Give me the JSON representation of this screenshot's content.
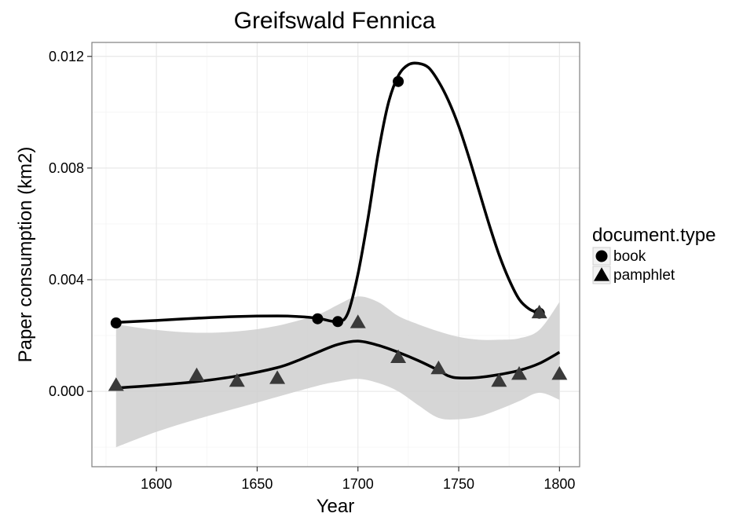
{
  "chart_data": {
    "type": "scatter",
    "title": "Greifswald Fennica",
    "xlabel": "Year",
    "ylabel": "Paper consumption (km2)",
    "xlim": [
      1568,
      1810
    ],
    "ylim": [
      -0.0027,
      0.0125
    ],
    "x_ticks": [
      1600,
      1650,
      1700,
      1750,
      1800
    ],
    "x_tick_labels": [
      "1600",
      "1650",
      "1700",
      "1750",
      "1800"
    ],
    "y_ticks": [
      0.0,
      0.004,
      0.008,
      0.012
    ],
    "y_tick_labels": [
      "0.000",
      "0.004",
      "0.008",
      "0.012"
    ],
    "grid": true,
    "legend": {
      "title": "document.type",
      "placement": "right",
      "entries": [
        {
          "label": "book",
          "shape": "circle"
        },
        {
          "label": "pamphlet",
          "shape": "triangle"
        }
      ]
    },
    "series": [
      {
        "name": "book",
        "shape": "circle",
        "color": "#000000",
        "points": [
          {
            "x": 1580,
            "y": 0.00245
          },
          {
            "x": 1680,
            "y": 0.0026
          },
          {
            "x": 1690,
            "y": 0.0025
          },
          {
            "x": 1720,
            "y": 0.0111
          },
          {
            "x": 1790,
            "y": 0.0028
          }
        ],
        "smooth": [
          [
            1580,
            0.00247
          ],
          [
            1600,
            0.00254
          ],
          [
            1620,
            0.00262
          ],
          [
            1640,
            0.00268
          ],
          [
            1660,
            0.0027
          ],
          [
            1670,
            0.00268
          ],
          [
            1680,
            0.00262
          ],
          [
            1690,
            0.0025
          ],
          [
            1695,
            0.0028
          ],
          [
            1700,
            0.0042
          ],
          [
            1705,
            0.0062
          ],
          [
            1710,
            0.0085
          ],
          [
            1715,
            0.0103
          ],
          [
            1720,
            0.0113
          ],
          [
            1725,
            0.0117
          ],
          [
            1730,
            0.01175
          ],
          [
            1735,
            0.0116
          ],
          [
            1740,
            0.0111
          ],
          [
            1745,
            0.0104
          ],
          [
            1750,
            0.0095
          ],
          [
            1755,
            0.0084
          ],
          [
            1760,
            0.0072
          ],
          [
            1765,
            0.006
          ],
          [
            1770,
            0.0049
          ],
          [
            1775,
            0.004
          ],
          [
            1780,
            0.0033
          ],
          [
            1785,
            0.00295
          ],
          [
            1790,
            0.0028
          ]
        ]
      },
      {
        "name": "pamphlet",
        "shape": "triangle",
        "color": "#3a3a3a",
        "points": [
          {
            "x": 1580,
            "y": 0.0002
          },
          {
            "x": 1620,
            "y": 0.00055
          },
          {
            "x": 1640,
            "y": 0.00035
          },
          {
            "x": 1660,
            "y": 0.00045
          },
          {
            "x": 1700,
            "y": 0.00245
          },
          {
            "x": 1720,
            "y": 0.0012
          },
          {
            "x": 1740,
            "y": 0.0008
          },
          {
            "x": 1770,
            "y": 0.00035
          },
          {
            "x": 1780,
            "y": 0.0006
          },
          {
            "x": 1790,
            "y": 0.0028
          },
          {
            "x": 1800,
            "y": 0.0006
          }
        ],
        "smooth": [
          [
            1580,
            0.00012
          ],
          [
            1600,
            0.00022
          ],
          [
            1620,
            0.00035
          ],
          [
            1640,
            0.00055
          ],
          [
            1660,
            0.00085
          ],
          [
            1670,
            0.0011
          ],
          [
            1680,
            0.0014
          ],
          [
            1690,
            0.00168
          ],
          [
            1700,
            0.0018
          ],
          [
            1710,
            0.00165
          ],
          [
            1720,
            0.0014
          ],
          [
            1730,
            0.0011
          ],
          [
            1740,
            0.00075
          ],
          [
            1745,
            0.00055
          ],
          [
            1750,
            0.00048
          ],
          [
            1760,
            0.0005
          ],
          [
            1770,
            0.0006
          ],
          [
            1780,
            0.00075
          ],
          [
            1790,
            0.001
          ],
          [
            1800,
            0.0014
          ]
        ],
        "ci_upper": [
          [
            1580,
            0.0024
          ],
          [
            1600,
            0.0022
          ],
          [
            1620,
            0.0021
          ],
          [
            1640,
            0.00215
          ],
          [
            1660,
            0.00235
          ],
          [
            1680,
            0.00275
          ],
          [
            1690,
            0.0031
          ],
          [
            1700,
            0.0034
          ],
          [
            1710,
            0.0032
          ],
          [
            1720,
            0.0027
          ],
          [
            1730,
            0.0024
          ],
          [
            1740,
            0.00215
          ],
          [
            1750,
            0.00195
          ],
          [
            1760,
            0.00185
          ],
          [
            1770,
            0.00185
          ],
          [
            1780,
            0.0019
          ],
          [
            1790,
            0.0022
          ],
          [
            1800,
            0.0032
          ]
        ],
        "ci_lower": [
          [
            1580,
            -0.002
          ],
          [
            1600,
            -0.00145
          ],
          [
            1620,
            -0.001
          ],
          [
            1640,
            -0.0006
          ],
          [
            1660,
            -0.0002
          ],
          [
            1680,
            0.0002
          ],
          [
            1690,
            0.00035
          ],
          [
            1700,
            0.00045
          ],
          [
            1710,
            0.0003
          ],
          [
            1720,
            0.0
          ],
          [
            1730,
            -0.0005
          ],
          [
            1740,
            -0.00095
          ],
          [
            1750,
            -0.001
          ],
          [
            1760,
            -0.0009
          ],
          [
            1770,
            -0.00065
          ],
          [
            1780,
            -0.00035
          ],
          [
            1790,
            -5e-05
          ],
          [
            1800,
            -0.0003
          ]
        ]
      }
    ]
  }
}
